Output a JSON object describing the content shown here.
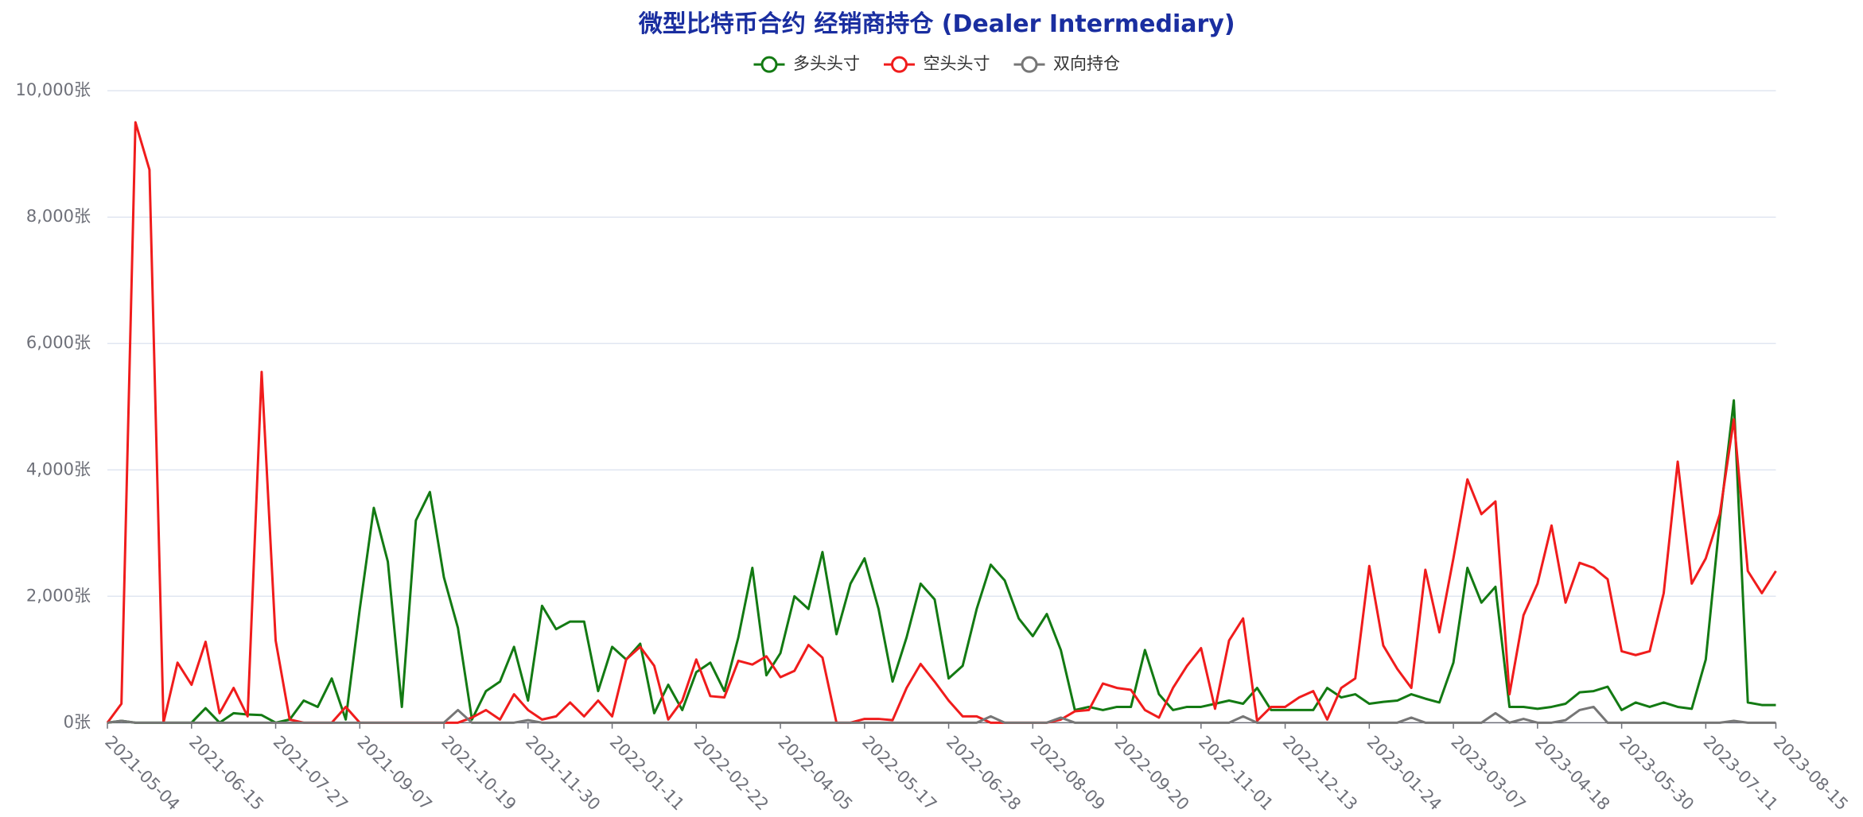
{
  "chart_data": {
    "type": "line",
    "title": "微型比特币合约 经销商持仓 (Dealer Intermediary)",
    "categories": [
      "2021-05-04",
      null,
      null,
      null,
      null,
      null,
      "2021-06-15",
      null,
      null,
      null,
      null,
      null,
      "2021-07-27",
      null,
      null,
      null,
      null,
      null,
      "2021-09-07",
      null,
      null,
      null,
      null,
      null,
      "2021-10-19",
      null,
      null,
      null,
      null,
      null,
      "2021-11-30",
      null,
      null,
      null,
      null,
      null,
      "2022-01-11",
      null,
      null,
      null,
      null,
      null,
      "2022-02-22",
      null,
      null,
      null,
      null,
      null,
      "2022-04-05",
      null,
      null,
      null,
      null,
      null,
      "2022-05-17",
      null,
      null,
      null,
      null,
      null,
      "2022-06-28",
      null,
      null,
      null,
      null,
      null,
      "2022-08-09",
      null,
      null,
      null,
      null,
      null,
      "2022-09-20",
      null,
      null,
      null,
      null,
      null,
      "2022-11-01",
      null,
      null,
      null,
      null,
      null,
      "2022-12-13",
      null,
      null,
      null,
      null,
      null,
      "2023-01-24",
      null,
      null,
      null,
      null,
      null,
      "2023-03-07",
      null,
      null,
      null,
      null,
      null,
      "2023-04-18",
      null,
      null,
      null,
      null,
      null,
      "2023-05-30",
      null,
      null,
      null,
      null,
      null,
      "2023-07-11",
      null,
      null,
      null,
      null,
      "2023-08-15"
    ],
    "series": [
      {
        "name": "多头头寸",
        "color": "#137a13",
        "values": [
          0,
          30,
          0,
          0,
          0,
          0,
          0,
          230,
          0,
          150,
          130,
          120,
          0,
          50,
          350,
          250,
          700,
          50,
          1800,
          3400,
          2550,
          250,
          3200,
          3650,
          2300,
          1500,
          50,
          500,
          650,
          1200,
          350,
          1850,
          1480,
          1600,
          1600,
          500,
          1200,
          1000,
          1250,
          150,
          600,
          200,
          800,
          950,
          500,
          1350,
          2450,
          750,
          1100,
          2000,
          1800,
          2700,
          1400,
          2200,
          2600,
          1800,
          650,
          1350,
          2200,
          1950,
          700,
          900,
          1800,
          2500,
          2250,
          1650,
          1370,
          1720,
          1150,
          200,
          250,
          200,
          250,
          250,
          1150,
          450,
          200,
          250,
          250,
          300,
          350,
          300,
          550,
          200,
          200,
          200,
          200,
          550,
          400,
          450,
          300,
          330,
          350,
          450,
          380,
          320,
          950,
          2450,
          1900,
          2150,
          250,
          250,
          220,
          250,
          300,
          480,
          500,
          570,
          200,
          320,
          250,
          320,
          250,
          220,
          1000,
          3200,
          5100,
          320,
          280,
          280
        ]
      },
      {
        "name": "空头头寸",
        "color": "#f01c1c",
        "values": [
          0,
          300,
          9500,
          8750,
          0,
          950,
          600,
          1280,
          150,
          550,
          100,
          5550,
          1300,
          50,
          0,
          0,
          0,
          250,
          0,
          0,
          0,
          0,
          0,
          0,
          0,
          0,
          80,
          200,
          50,
          450,
          200,
          50,
          100,
          320,
          100,
          350,
          100,
          1000,
          1200,
          900,
          50,
          350,
          1000,
          420,
          400,
          980,
          920,
          1050,
          720,
          820,
          1230,
          1030,
          0,
          0,
          60,
          60,
          40,
          550,
          930,
          650,
          350,
          100,
          100,
          0,
          0,
          0,
          0,
          0,
          50,
          180,
          200,
          620,
          550,
          520,
          200,
          80,
          550,
          900,
          1180,
          220,
          1300,
          1650,
          30,
          250,
          250,
          400,
          500,
          50,
          550,
          700,
          2480,
          1220,
          850,
          550,
          2420,
          1430,
          2600,
          3850,
          3300,
          3500,
          450,
          1700,
          2200,
          3120,
          1900,
          2530,
          2450,
          2270,
          1130,
          1070,
          1130,
          2050,
          4130,
          2200,
          2600,
          3300,
          4800,
          2400,
          2050,
          2400
        ]
      },
      {
        "name": "双向持仓",
        "color": "#767676",
        "values": [
          0,
          30,
          0,
          0,
          0,
          0,
          0,
          0,
          0,
          0,
          0,
          0,
          0,
          0,
          0,
          0,
          0,
          0,
          0,
          0,
          0,
          0,
          0,
          0,
          0,
          200,
          0,
          0,
          0,
          0,
          40,
          0,
          0,
          0,
          0,
          0,
          0,
          0,
          0,
          0,
          0,
          0,
          0,
          0,
          0,
          0,
          0,
          0,
          0,
          0,
          0,
          0,
          0,
          0,
          0,
          0,
          0,
          0,
          0,
          0,
          0,
          0,
          0,
          100,
          0,
          0,
          0,
          0,
          80,
          0,
          0,
          0,
          0,
          0,
          0,
          0,
          0,
          0,
          0,
          0,
          0,
          100,
          0,
          0,
          0,
          0,
          0,
          0,
          0,
          0,
          0,
          0,
          0,
          80,
          0,
          0,
          0,
          0,
          0,
          150,
          0,
          60,
          0,
          0,
          40,
          200,
          250,
          0,
          0,
          0,
          0,
          0,
          0,
          0,
          0,
          0,
          30,
          0,
          0,
          0
        ]
      }
    ],
    "ylim": [
      0,
      10000
    ],
    "yticks": [
      {
        "value": 0,
        "label": "0张"
      },
      {
        "value": 2000,
        "label": "2,000张"
      },
      {
        "value": 4000,
        "label": "4,000张"
      },
      {
        "value": 6000,
        "label": "6,000张"
      },
      {
        "value": 8000,
        "label": "8,000张"
      },
      {
        "value": 10000,
        "label": "10,000张"
      }
    ],
    "grid": true
  }
}
